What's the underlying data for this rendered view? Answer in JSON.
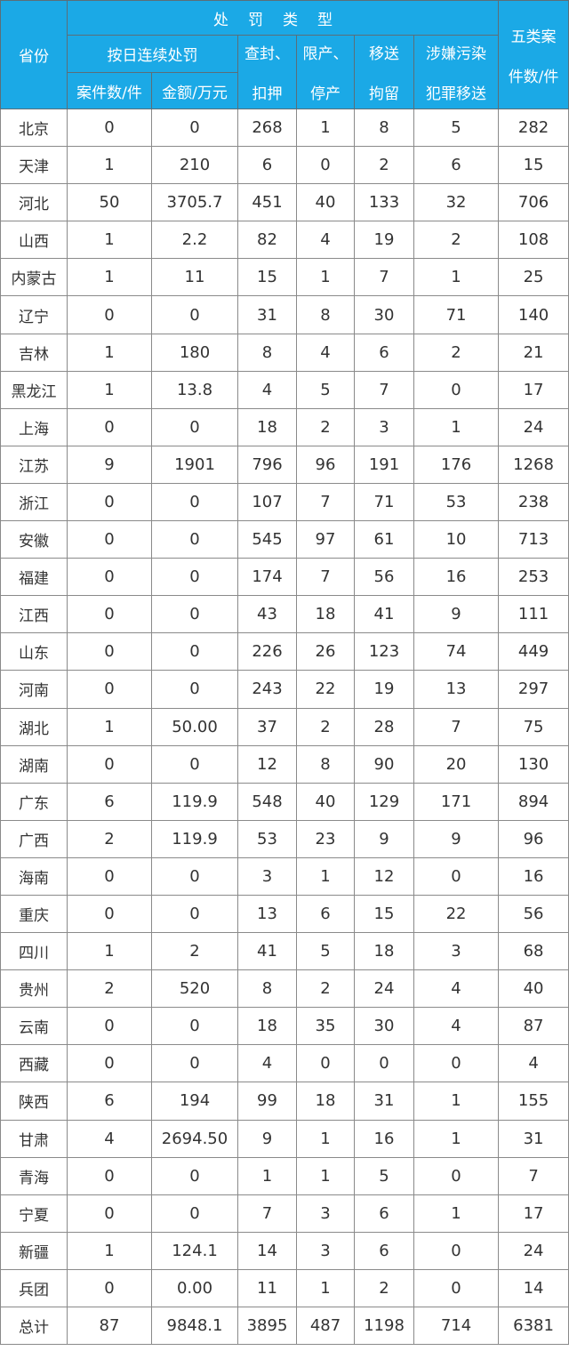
{
  "header": {
    "province": "省份",
    "penalty_type": "处罚类型",
    "daily_penalty": "按日连续处罚",
    "cases": "案件数/件",
    "amount": "金额/万元",
    "seal_line1": "查封、",
    "seal_line2": "扣押",
    "limit_line1": "限产、",
    "limit_line2": "停产",
    "transfer_line1": "移送",
    "transfer_line2": "拘留",
    "crime_line1": "涉嫌污染",
    "crime_line2": "犯罪移送",
    "total_line1": "五类案",
    "total_line2": "件数/件"
  },
  "colors": {
    "header_bg": "#1ba9e6",
    "header_text": "#ffffff"
  },
  "rows": [
    [
      "北京",
      "0",
      "0",
      "268",
      "1",
      "8",
      "5",
      "282"
    ],
    [
      "天津",
      "1",
      "210",
      "6",
      "0",
      "2",
      "6",
      "15"
    ],
    [
      "河北",
      "50",
      "3705.7",
      "451",
      "40",
      "133",
      "32",
      "706"
    ],
    [
      "山西",
      "1",
      "2.2",
      "82",
      "4",
      "19",
      "2",
      "108"
    ],
    [
      "内蒙古",
      "1",
      "11",
      "15",
      "1",
      "7",
      "1",
      "25"
    ],
    [
      "辽宁",
      "0",
      "0",
      "31",
      "8",
      "30",
      "71",
      "140"
    ],
    [
      "吉林",
      "1",
      "180",
      "8",
      "4",
      "6",
      "2",
      "21"
    ],
    [
      "黑龙江",
      "1",
      "13.8",
      "4",
      "5",
      "7",
      "0",
      "17"
    ],
    [
      "上海",
      "0",
      "0",
      "18",
      "2",
      "3",
      "1",
      "24"
    ],
    [
      "江苏",
      "9",
      "1901",
      "796",
      "96",
      "191",
      "176",
      "1268"
    ],
    [
      "浙江",
      "0",
      "0",
      "107",
      "7",
      "71",
      "53",
      "238"
    ],
    [
      "安徽",
      "0",
      "0",
      "545",
      "97",
      "61",
      "10",
      "713"
    ],
    [
      "福建",
      "0",
      "0",
      "174",
      "7",
      "56",
      "16",
      "253"
    ],
    [
      "江西",
      "0",
      "0",
      "43",
      "18",
      "41",
      "9",
      "111"
    ],
    [
      "山东",
      "0",
      "0",
      "226",
      "26",
      "123",
      "74",
      "449"
    ],
    [
      "河南",
      "0",
      "0",
      "243",
      "22",
      "19",
      "13",
      "297"
    ],
    [
      "湖北",
      "1",
      "50.00",
      "37",
      "2",
      "28",
      "7",
      "75"
    ],
    [
      "湖南",
      "0",
      "0",
      "12",
      "8",
      "90",
      "20",
      "130"
    ],
    [
      "广东",
      "6",
      "119.9",
      "548",
      "40",
      "129",
      "171",
      "894"
    ],
    [
      "广西",
      "2",
      "119.9",
      "53",
      "23",
      "9",
      "9",
      "96"
    ],
    [
      "海南",
      "0",
      "0",
      "3",
      "1",
      "12",
      "0",
      "16"
    ],
    [
      "重庆",
      "0",
      "0",
      "13",
      "6",
      "15",
      "22",
      "56"
    ],
    [
      "四川",
      "1",
      "2",
      "41",
      "5",
      "18",
      "3",
      "68"
    ],
    [
      "贵州",
      "2",
      "520",
      "8",
      "2",
      "24",
      "4",
      "40"
    ],
    [
      "云南",
      "0",
      "0",
      "18",
      "35",
      "30",
      "4",
      "87"
    ],
    [
      "西藏",
      "0",
      "0",
      "4",
      "0",
      "0",
      "0",
      "4"
    ],
    [
      "陕西",
      "6",
      "194",
      "99",
      "18",
      "31",
      "1",
      "155"
    ],
    [
      "甘肃",
      "4",
      "2694.50",
      "9",
      "1",
      "16",
      "1",
      "31"
    ],
    [
      "青海",
      "0",
      "0",
      "1",
      "1",
      "5",
      "0",
      "7"
    ],
    [
      "宁夏",
      "0",
      "0",
      "7",
      "3",
      "6",
      "1",
      "17"
    ],
    [
      "新疆",
      "1",
      "124.1",
      "14",
      "3",
      "6",
      "0",
      "24"
    ],
    [
      "兵团",
      "0",
      "0.00",
      "11",
      "1",
      "2",
      "0",
      "14"
    ],
    [
      "总计",
      "87",
      "9848.1",
      "3895",
      "487",
      "1198",
      "714",
      "6381"
    ]
  ]
}
